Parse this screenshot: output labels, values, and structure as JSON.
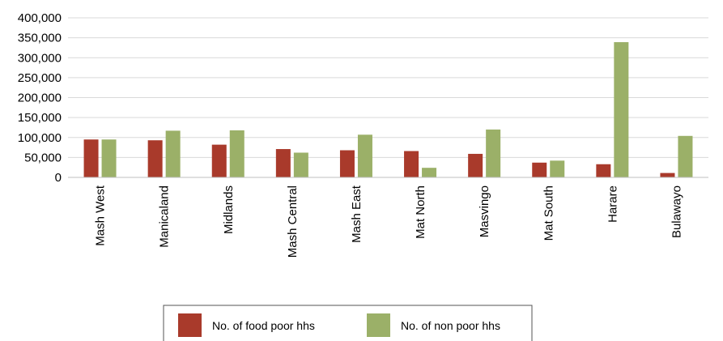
{
  "chart_data": {
    "type": "bar",
    "title": "",
    "xlabel": "",
    "ylabel": "",
    "ylim": [
      0,
      400000
    ],
    "yticks": [
      0,
      50000,
      100000,
      150000,
      200000,
      250000,
      300000,
      350000,
      400000
    ],
    "ytick_labels": [
      "0",
      "50,000",
      "100,000",
      "150,000",
      "200,000",
      "250,000",
      "300,000",
      "350,000",
      "400,000"
    ],
    "grid": true,
    "legend_position": "bottom",
    "categories": [
      "Mash West",
      "Manicaland",
      "Midlands",
      "Mash Central",
      "Mash East",
      "Mat North",
      "Masvingo",
      "Mat South",
      "Harare",
      "Bulawayo"
    ],
    "series": [
      {
        "name": "No. of food poor hhs",
        "color": "#a93a2b",
        "values": [
          95000,
          93000,
          82000,
          71000,
          68000,
          66000,
          59000,
          37000,
          33000,
          11000
        ]
      },
      {
        "name": "No. of non poor hhs",
        "color": "#9bb068",
        "values": [
          95000,
          117000,
          118000,
          62000,
          107000,
          24000,
          120000,
          42000,
          339000,
          104000
        ]
      }
    ]
  }
}
